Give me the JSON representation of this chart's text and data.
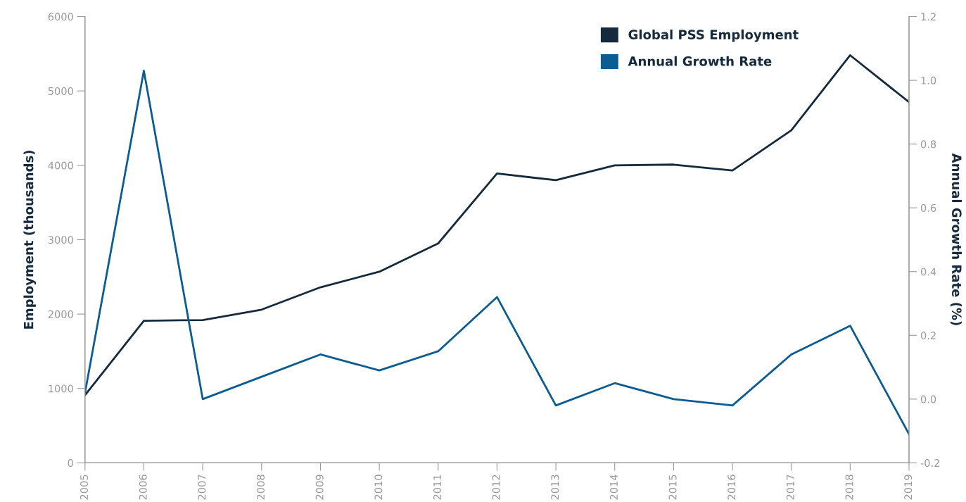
{
  "chart_data": {
    "type": "line",
    "x": [
      2005,
      2006,
      2007,
      2008,
      2009,
      2010,
      2011,
      2012,
      2013,
      2014,
      2015,
      2016,
      2017,
      2018,
      2019
    ],
    "series": [
      {
        "name": "Global PSS Employment",
        "color": "#152a3c",
        "values": [
          910,
          1910,
          1920,
          2060,
          2360,
          2570,
          2950,
          3890,
          3800,
          4000,
          4010,
          3930,
          4470,
          5480,
          4850
        ]
      },
      {
        "name": "Annual Growth Rate",
        "color": "#0a5c93",
        "axis": "y2",
        "values": [
          0.02,
          1.03,
          0.0,
          0.07,
          0.14,
          0.09,
          0.15,
          0.32,
          -0.02,
          0.05,
          0.0,
          -0.02,
          0.14,
          0.23,
          -0.11
        ]
      }
    ],
    "ylabel": "Employment (thousands)",
    "y2label": "Annual Growth Rate (%)",
    "xlim": [
      2005,
      2019
    ],
    "xticks": [
      2005,
      2006,
      2007,
      2008,
      2009,
      2010,
      2011,
      2012,
      2013,
      2014,
      2015,
      2016,
      2017,
      2018,
      2019
    ],
    "ylim": [
      0,
      6000
    ],
    "yticks": [
      0,
      1000,
      2000,
      3000,
      4000,
      5000,
      6000
    ],
    "y2lim": [
      -0.2,
      1.2
    ],
    "y2ticks": [
      {
        "value": -0.2,
        "label": "-0.2"
      },
      {
        "value": 0.0,
        "label": "0.0"
      },
      {
        "value": 0.2,
        "label": "0.2"
      },
      {
        "value": 0.4,
        "label": "0.4"
      },
      {
        "value": 0.6,
        "label": "0.6"
      },
      {
        "value": 0.8,
        "label": "0.8"
      },
      {
        "value": 1.0,
        "label": "1.0"
      },
      {
        "value": 1.2,
        "label": "1.2"
      }
    ],
    "grid": false,
    "legend": "top right",
    "marker": "none",
    "line_style": "solid"
  }
}
